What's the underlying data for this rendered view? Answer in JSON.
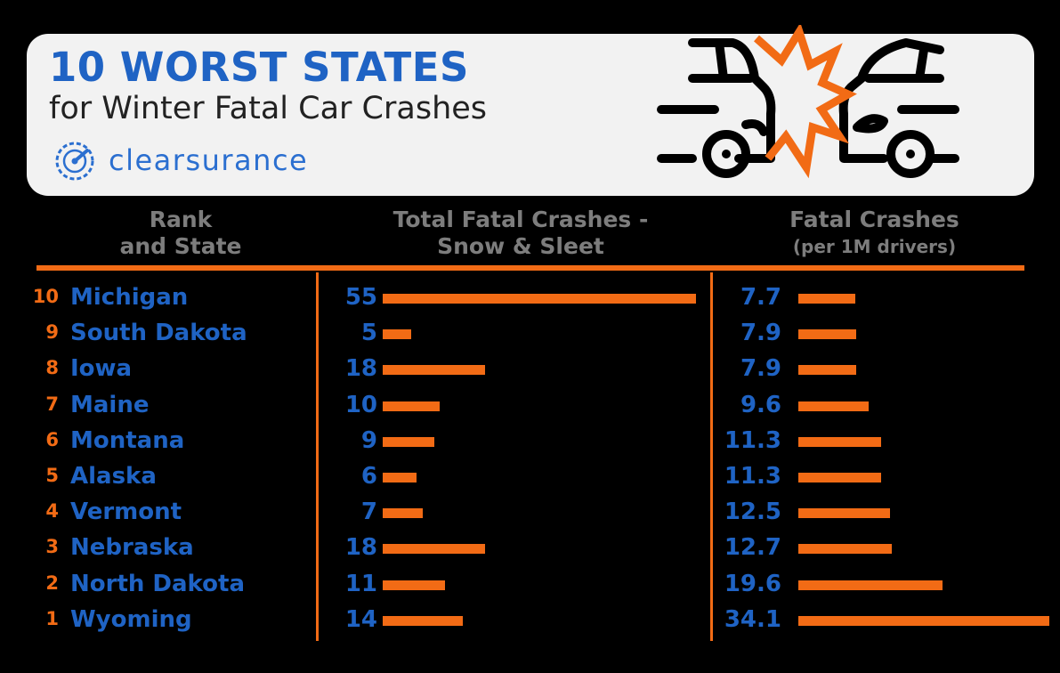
{
  "header": {
    "title": "10 WORST STATES",
    "subtitle": "for Winter Fatal Car Crashes",
    "logo_text": "clearsurance"
  },
  "columns": {
    "rank_state_line1": "Rank",
    "rank_state_line2": "and State",
    "total_line1": "Total Fatal Crashes -",
    "total_line2": "Snow & Sleet",
    "per_line1": "Fatal Crashes",
    "per_line2": "(per 1M drivers)"
  },
  "colors": {
    "accent": "#f26b15",
    "primary": "#1f63c4",
    "background": "#000000",
    "card": "#f2f2f2"
  },
  "icons": [
    "speedometer-logo-icon",
    "car-crash-icon"
  ],
  "rows": [
    {
      "rank": "10",
      "state": "Michigan",
      "total": "55",
      "per": "7.7"
    },
    {
      "rank": "9",
      "state": "South Dakota",
      "total": "5",
      "per": "7.9"
    },
    {
      "rank": "8",
      "state": "Iowa",
      "total": "18",
      "per": "7.9"
    },
    {
      "rank": "7",
      "state": "Maine",
      "total": "10",
      "per": "9.6"
    },
    {
      "rank": "6",
      "state": "Montana",
      "total": "9",
      "per": "11.3"
    },
    {
      "rank": "5",
      "state": "Alaska",
      "total": "6",
      "per": "11.3"
    },
    {
      "rank": "4",
      "state": "Vermont",
      "total": "7",
      "per": "12.5"
    },
    {
      "rank": "3",
      "state": "Nebraska",
      "total": "18",
      "per": "12.7"
    },
    {
      "rank": "2",
      "state": "North Dakota",
      "total": "11",
      "per": "19.6"
    },
    {
      "rank": "1",
      "state": "Wyoming",
      "total": "14",
      "per": "34.1"
    }
  ],
  "chart_data": {
    "type": "bar",
    "categories": [
      "Michigan",
      "South Dakota",
      "Iowa",
      "Maine",
      "Montana",
      "Alaska",
      "Vermont",
      "Nebraska",
      "North Dakota",
      "Wyoming"
    ],
    "series": [
      {
        "values": [
          55,
          5,
          18,
          10,
          9,
          6,
          7,
          18,
          11,
          14
        ]
      },
      {
        "values": [
          7.7,
          7.9,
          7.9,
          9.6,
          11.3,
          11.3,
          12.5,
          12.7,
          19.6,
          34.1
        ]
      }
    ],
    "title": "10 WORST STATES",
    "subtitle": "for Winter Fatal Car Crashes"
  }
}
